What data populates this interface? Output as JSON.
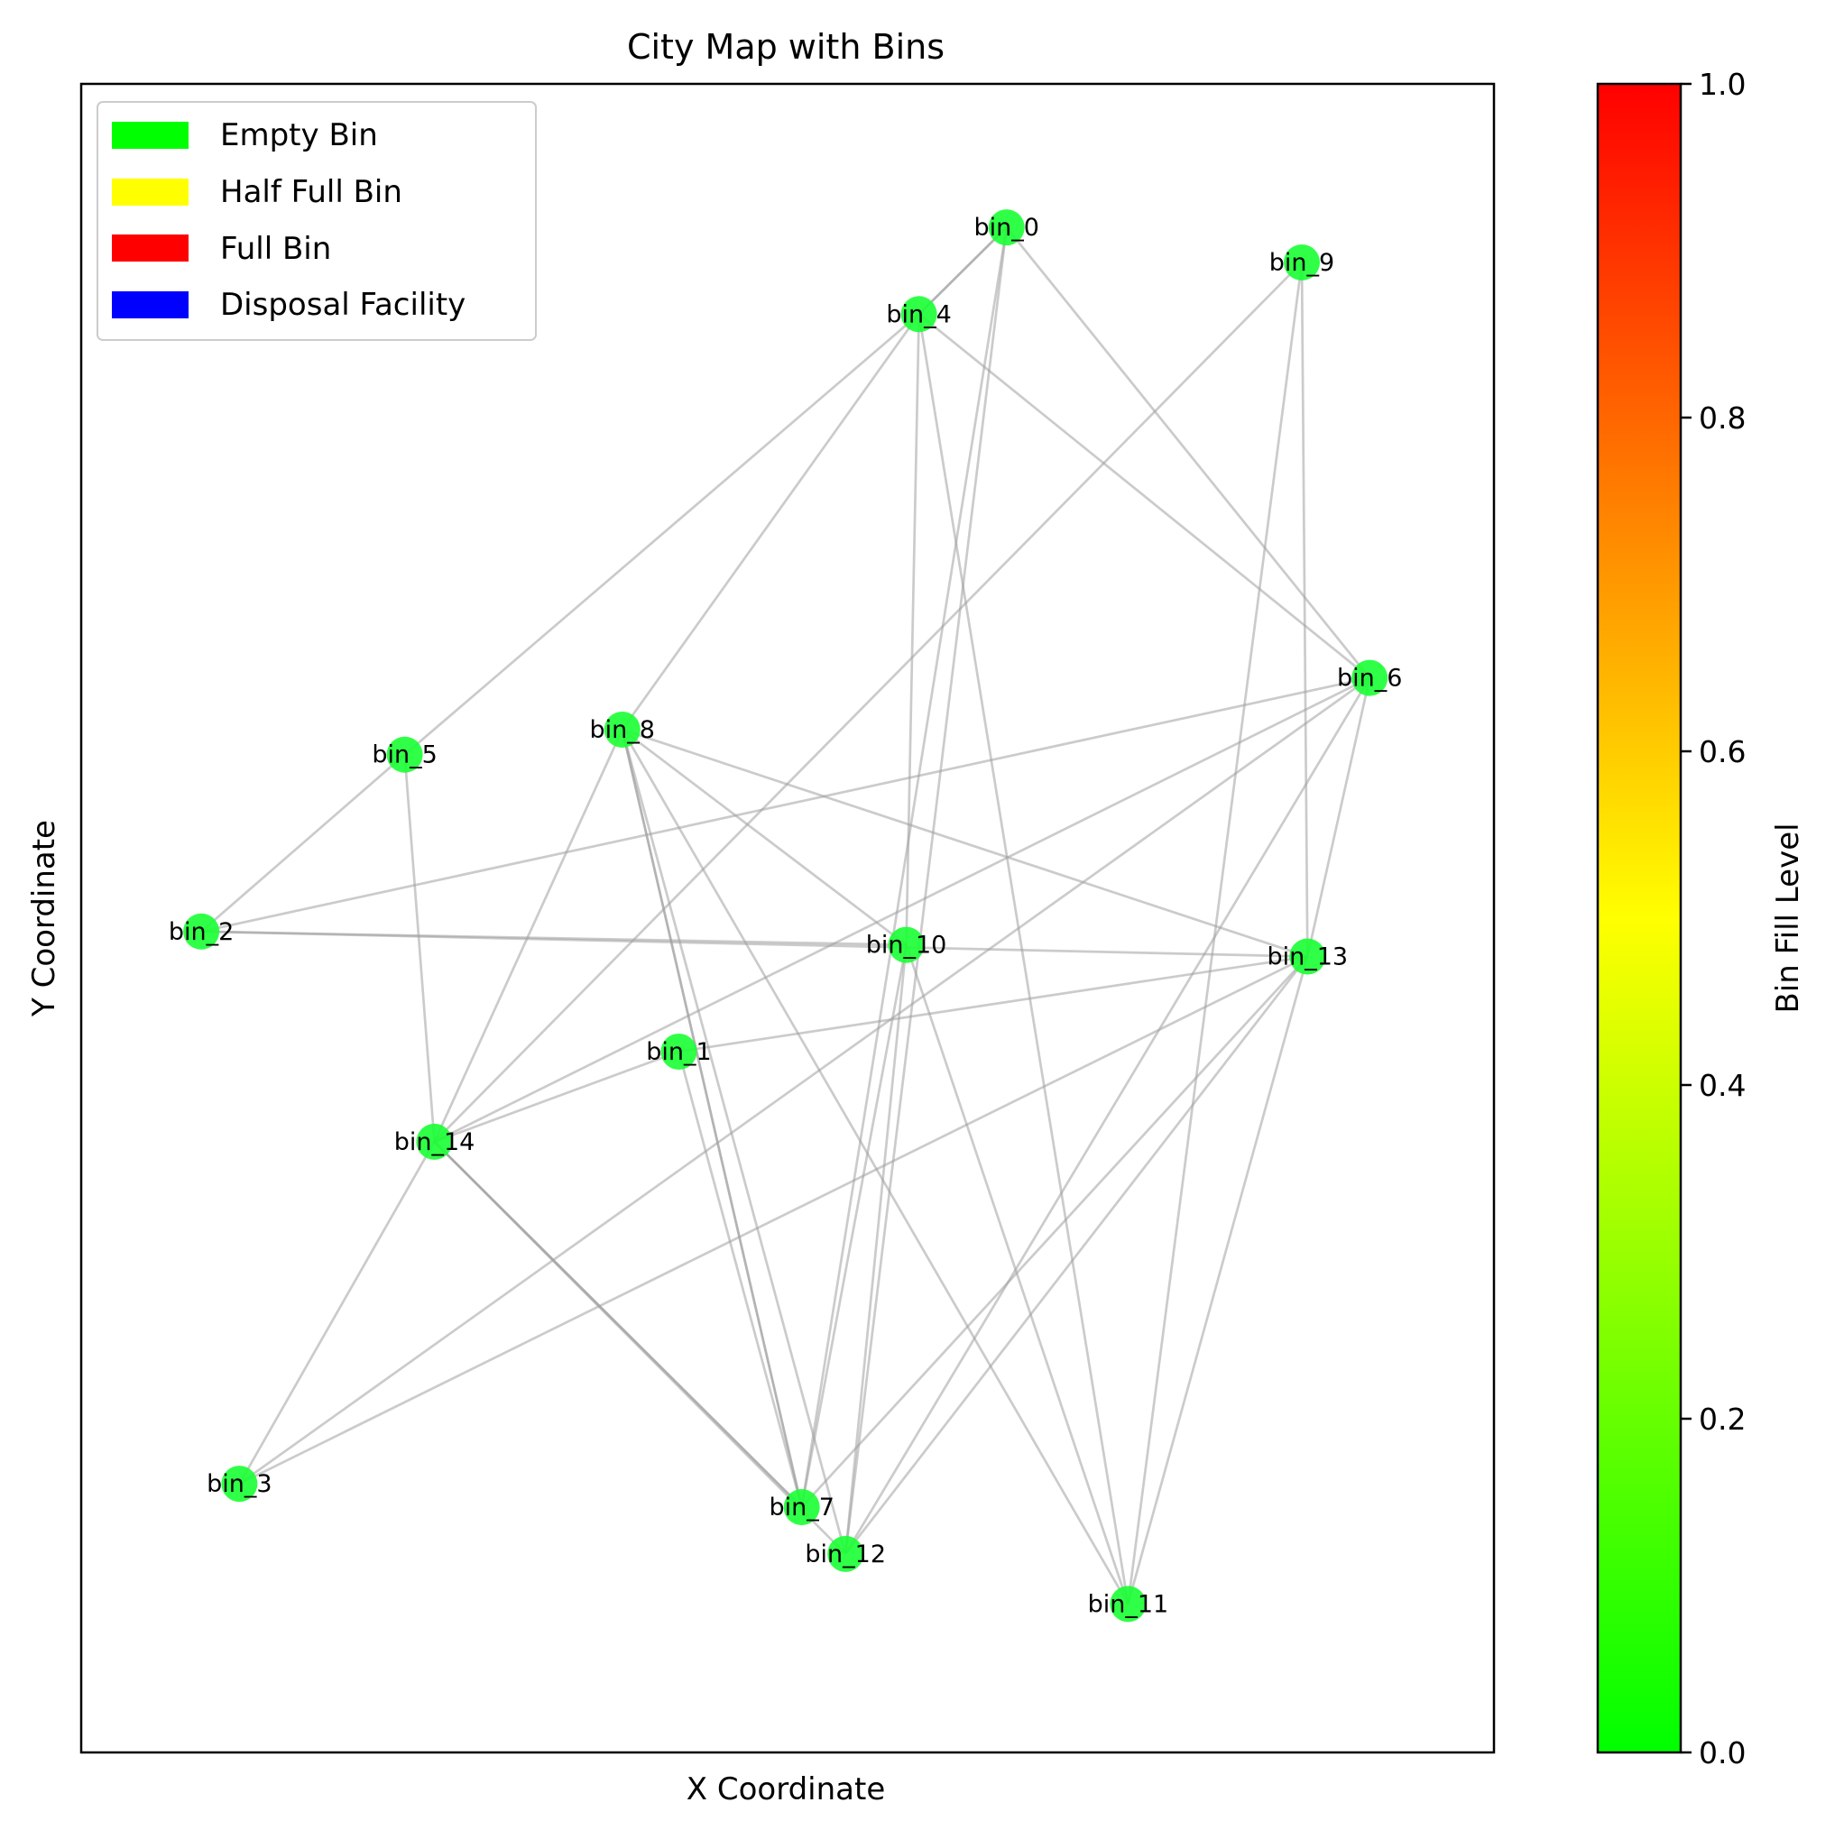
{
  "title": "City Map with Bins",
  "xlabel": "X Coordinate",
  "ylabel": "Y Coordinate",
  "legend": {
    "position": "top-left",
    "items": [
      {
        "label": "Empty Bin",
        "color": "#00ff00"
      },
      {
        "label": "Half Full Bin",
        "color": "#ffff00"
      },
      {
        "label": "Full Bin",
        "color": "#ff0000"
      },
      {
        "label": "Disposal Facility",
        "color": "#0000ff"
      }
    ]
  },
  "colorbar": {
    "label": "Bin Fill Level",
    "min": 0.0,
    "max": 1.0,
    "ticks": [
      "0.0",
      "0.2",
      "0.4",
      "0.6",
      "0.8",
      "1.0"
    ],
    "colors": [
      "#00ff00",
      "#ffff00",
      "#ff0000"
    ]
  },
  "chart_data": {
    "type": "network",
    "x_range": [
      0,
      100
    ],
    "y_range": [
      0,
      100
    ],
    "node_color": "#1aff33",
    "edge_color": "#a0a0a0",
    "nodes": [
      {
        "id": "bin_0",
        "label": "bin_0",
        "x": 65.5,
        "y": 91.4,
        "fill_level": 0.05
      },
      {
        "id": "bin_1",
        "label": "bin_1",
        "x": 42.3,
        "y": 42.0,
        "fill_level": 0.05
      },
      {
        "id": "bin_2",
        "label": "bin_2",
        "x": 8.5,
        "y": 49.2,
        "fill_level": 0.05
      },
      {
        "id": "bin_3",
        "label": "bin_3",
        "x": 11.2,
        "y": 16.1,
        "fill_level": 0.05
      },
      {
        "id": "bin_4",
        "label": "bin_4",
        "x": 59.3,
        "y": 86.2,
        "fill_level": 0.05
      },
      {
        "id": "bin_5",
        "label": "bin_5",
        "x": 22.9,
        "y": 59.8,
        "fill_level": 0.05
      },
      {
        "id": "bin_6",
        "label": "bin_6",
        "x": 91.2,
        "y": 64.4,
        "fill_level": 0.05
      },
      {
        "id": "bin_7",
        "label": "bin_7",
        "x": 51.0,
        "y": 14.7,
        "fill_level": 0.05
      },
      {
        "id": "bin_8",
        "label": "bin_8",
        "x": 38.3,
        "y": 61.3,
        "fill_level": 0.05
      },
      {
        "id": "bin_9",
        "label": "bin_9",
        "x": 86.4,
        "y": 89.3,
        "fill_level": 0.05
      },
      {
        "id": "bin_10",
        "label": "bin_10",
        "x": 58.4,
        "y": 48.4,
        "fill_level": 0.05
      },
      {
        "id": "bin_11",
        "label": "bin_11",
        "x": 74.1,
        "y": 8.9,
        "fill_level": 0.05
      },
      {
        "id": "bin_12",
        "label": "bin_12",
        "x": 54.1,
        "y": 11.9,
        "fill_level": 0.05
      },
      {
        "id": "bin_13",
        "label": "bin_13",
        "x": 86.8,
        "y": 47.7,
        "fill_level": 0.05
      },
      {
        "id": "bin_14",
        "label": "bin_14",
        "x": 25.0,
        "y": 36.6,
        "fill_level": 0.05
      }
    ],
    "edges": [
      [
        "bin_0",
        "bin_4"
      ],
      [
        "bin_0",
        "bin_4"
      ],
      [
        "bin_0",
        "bin_7"
      ],
      [
        "bin_0",
        "bin_12"
      ],
      [
        "bin_0",
        "bin_6"
      ],
      [
        "bin_4",
        "bin_5"
      ],
      [
        "bin_4",
        "bin_8"
      ],
      [
        "bin_4",
        "bin_10"
      ],
      [
        "bin_4",
        "bin_11"
      ],
      [
        "bin_4",
        "bin_6"
      ],
      [
        "bin_9",
        "bin_14"
      ],
      [
        "bin_9",
        "bin_13"
      ],
      [
        "bin_9",
        "bin_11"
      ],
      [
        "bin_5",
        "bin_2"
      ],
      [
        "bin_5",
        "bin_14"
      ],
      [
        "bin_8",
        "bin_7"
      ],
      [
        "bin_8",
        "bin_7"
      ],
      [
        "bin_8",
        "bin_12"
      ],
      [
        "bin_8",
        "bin_10"
      ],
      [
        "bin_8",
        "bin_13"
      ],
      [
        "bin_8",
        "bin_11"
      ],
      [
        "bin_8",
        "bin_14"
      ],
      [
        "bin_2",
        "bin_10"
      ],
      [
        "bin_2",
        "bin_13"
      ],
      [
        "bin_2",
        "bin_6"
      ],
      [
        "bin_6",
        "bin_14"
      ],
      [
        "bin_6",
        "bin_3"
      ],
      [
        "bin_6",
        "bin_12"
      ],
      [
        "bin_6",
        "bin_13"
      ],
      [
        "bin_10",
        "bin_7"
      ],
      [
        "bin_10",
        "bin_12"
      ],
      [
        "bin_10",
        "bin_11"
      ],
      [
        "bin_13",
        "bin_1"
      ],
      [
        "bin_13",
        "bin_7"
      ],
      [
        "bin_13",
        "bin_12"
      ],
      [
        "bin_13",
        "bin_3"
      ],
      [
        "bin_13",
        "bin_11"
      ],
      [
        "bin_1",
        "bin_14"
      ],
      [
        "bin_1",
        "bin_7"
      ],
      [
        "bin_14",
        "bin_3"
      ],
      [
        "bin_14",
        "bin_7"
      ],
      [
        "bin_14",
        "bin_7"
      ],
      [
        "bin_14",
        "bin_12"
      ]
    ]
  }
}
